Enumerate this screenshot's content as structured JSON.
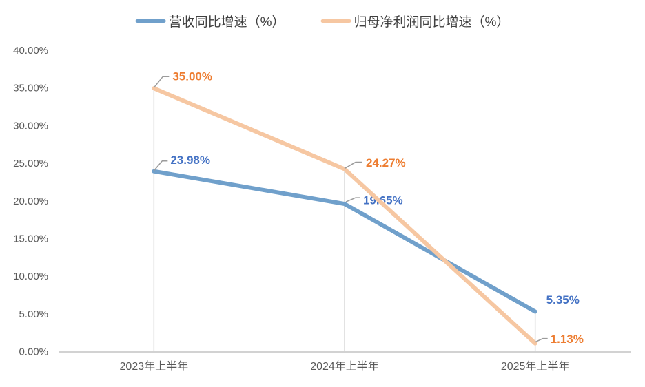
{
  "chart_data": {
    "type": "line",
    "categories": [
      "2023年上半年",
      "2024年上半年",
      "2025年上半年"
    ],
    "series": [
      {
        "name": "营收同比增速（%）",
        "values": [
          23.98,
          19.65,
          5.35
        ],
        "labels": [
          "23.98%",
          "19.65%",
          "5.35%"
        ],
        "line_color": "#70A0CB",
        "label_color": "#4472C4"
      },
      {
        "name": "归母净利润同比增速（%）",
        "values": [
          35.0,
          24.27,
          1.13
        ],
        "labels": [
          "35.00%",
          "24.27%",
          "1.13%"
        ],
        "line_color": "#F6C7A2",
        "label_color": "#ED7D31"
      }
    ],
    "title": "",
    "xlabel": "",
    "ylabel": "",
    "ylim": [
      0,
      40
    ],
    "y_tick_step": 5,
    "y_tick_labels": [
      "0.00%",
      "5.00%",
      "10.00%",
      "15.00%",
      "20.00%",
      "25.00%",
      "30.00%",
      "35.00%",
      "40.00%"
    ],
    "legend_position": "top",
    "grid": false,
    "drop_lines": true
  },
  "colors": {
    "background": "#FFFFFF",
    "axis_text": "#595959",
    "legend_text": "#404040",
    "axis_line": "#D2D2D2",
    "drop_line": "#D9D9D9",
    "leader_line": "#9B9B9B"
  }
}
